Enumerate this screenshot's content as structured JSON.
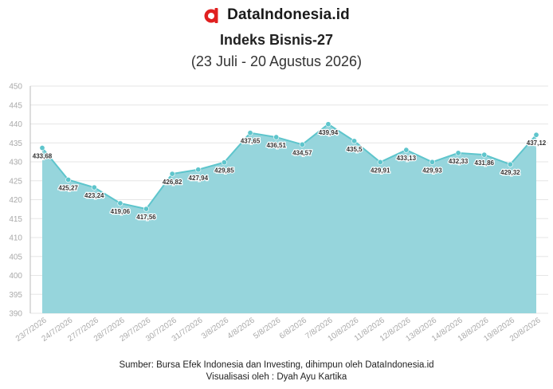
{
  "brand": {
    "name": "DataIndonesia.id",
    "accent": "#e02020"
  },
  "chart_data": {
    "type": "area",
    "title": "Indeks Bisnis-27",
    "subtitle": "(23 Juli - 20 Agustus 2026)",
    "categories": [
      "23/7/2026",
      "24/7/2026",
      "27/7/2026",
      "28/7/2026",
      "29/7/2026",
      "30/7/2026",
      "31/7/2026",
      "3/8/2026",
      "4/8/2026",
      "5/8/2026",
      "6/8/2026",
      "7/8/2026",
      "10/8/2026",
      "11/8/2026",
      "12/8/2026",
      "13/8/2026",
      "14/8/2026",
      "18/8/2026",
      "19/8/2026",
      "20/8/2026"
    ],
    "values": [
      433.68,
      425.27,
      423.24,
      419.06,
      417.56,
      426.82,
      427.94,
      429.85,
      437.65,
      436.51,
      434.57,
      439.94,
      435.5,
      429.91,
      433.13,
      429.93,
      432.33,
      431.86,
      429.32,
      437.12
    ],
    "data_labels": [
      "433,68",
      "425,27",
      "423,24",
      "419,06",
      "417,56",
      "426,82",
      "427,94",
      "429,85",
      "437,65",
      "436,51",
      "434,57",
      "439,94",
      "435,5",
      "429,91",
      "433,13",
      "429,93",
      "432,33",
      "431,86",
      "429,32",
      "437,12"
    ],
    "ylim": [
      390,
      450
    ],
    "yticks": [
      390,
      395,
      400,
      405,
      410,
      415,
      420,
      425,
      430,
      435,
      440,
      445,
      450
    ],
    "grid": true,
    "colors": {
      "fill": "#96d5dc",
      "line": "#5ec5cc",
      "point": "#5ec5cc",
      "grid": "#e6e6e6",
      "tick": "#aaaaaa"
    }
  },
  "footer": {
    "source": "Sumber: Bursa Efek Indonesia dan Investing, dihimpun oleh DataIndonesia.id",
    "credit": "Visualisasi oleh : Dyah Ayu Kartika"
  }
}
